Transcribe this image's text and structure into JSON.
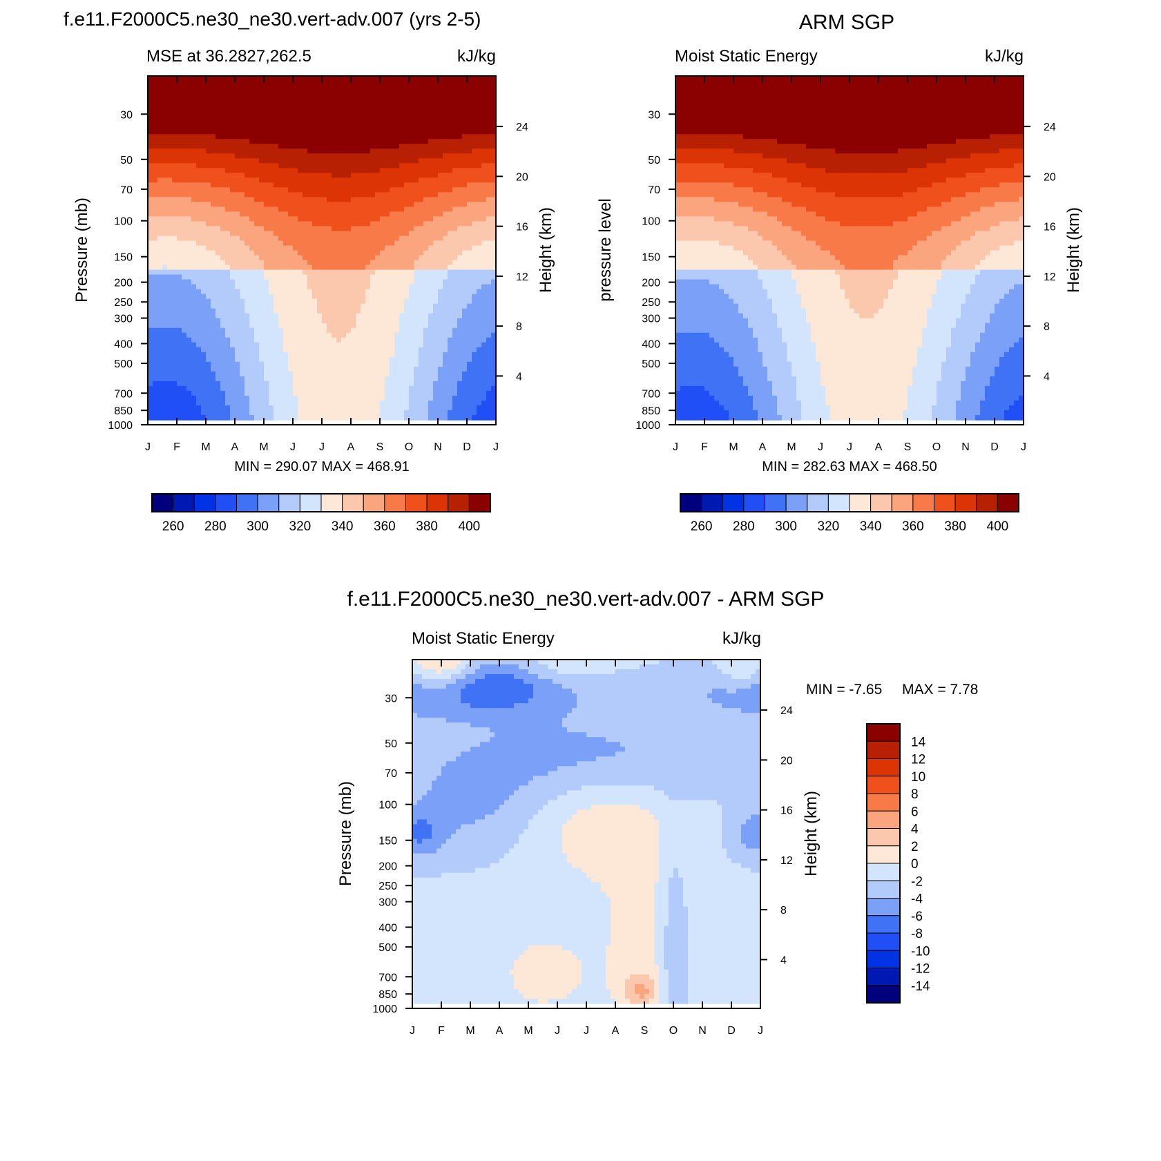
{
  "chart_data": [
    {
      "type": "heatmap",
      "id": "p1",
      "title": "f.e11.F2000C5.ne30_ne30.vert-adv.007 (yrs 2-5)",
      "subtitle_left": "MSE at 36.2827,262.5",
      "subtitle_right": "kJ/kg",
      "ylabel": "Pressure (mb)",
      "ylabel_right": "Height (km)",
      "months": [
        "J",
        "F",
        "M",
        "A",
        "M",
        "J",
        "J",
        "A",
        "S",
        "O",
        "N",
        "D",
        "J"
      ],
      "pressure_ticks": [
        30,
        50,
        70,
        100,
        150,
        200,
        250,
        300,
        400,
        500,
        700,
        850,
        1000
      ],
      "height_ticks": [
        24,
        20,
        16,
        12,
        8,
        4
      ],
      "stats": "MIN = 290.07 MAX = 468.91",
      "colorbar_ticks": [
        "260",
        "280",
        "300",
        "320",
        "340",
        "360",
        "380",
        "400"
      ],
      "levels": [
        250,
        260,
        270,
        280,
        290,
        300,
        310,
        320,
        330,
        340,
        350,
        360,
        370,
        380,
        390,
        400
      ],
      "summer_strength": 1.0
    },
    {
      "type": "heatmap",
      "id": "p2",
      "title": "ARM SGP",
      "subtitle_left": "Moist Static Energy",
      "subtitle_right": "kJ/kg",
      "ylabel": "pressure level",
      "ylabel_right": "Height (km)",
      "months": [
        "J",
        "F",
        "M",
        "A",
        "M",
        "J",
        "J",
        "A",
        "S",
        "O",
        "N",
        "D",
        "J"
      ],
      "pressure_ticks": [
        30,
        50,
        70,
        100,
        150,
        200,
        250,
        300,
        400,
        500,
        700,
        850,
        1000
      ],
      "height_ticks": [
        24,
        20,
        16,
        12,
        8,
        4
      ],
      "stats": "MIN = 282.63 MAX = 468.50",
      "colorbar_ticks": [
        "260",
        "280",
        "300",
        "320",
        "340",
        "360",
        "380",
        "400"
      ],
      "levels": [
        250,
        260,
        270,
        280,
        290,
        300,
        310,
        320,
        330,
        340,
        350,
        360,
        370,
        380,
        390,
        400
      ],
      "summer_strength": 0.95
    },
    {
      "type": "heatmap",
      "id": "p3",
      "title": "f.e11.F2000C5.ne30_ne30.vert-adv.007 - ARM SGP",
      "subtitle_left": "Moist Static Energy",
      "subtitle_right": "kJ/kg",
      "ylabel": "Pressure (mb)",
      "ylabel_right": "Height (km)",
      "months": [
        "J",
        "F",
        "M",
        "A",
        "M",
        "J",
        "J",
        "A",
        "S",
        "O",
        "N",
        "D",
        "J"
      ],
      "pressure_ticks": [
        30,
        50,
        70,
        100,
        150,
        200,
        250,
        300,
        400,
        500,
        700,
        850,
        1000
      ],
      "height_ticks": [
        24,
        20,
        16,
        12,
        8,
        4
      ],
      "stats_min": "MIN =  -7.65",
      "stats_max": "MAX =   7.78",
      "colorbar_ticks": [
        "14",
        "12",
        "10",
        "8",
        "6",
        "4",
        "2",
        "0",
        "-2",
        "-4",
        "-6",
        "-8",
        "-10",
        "-12",
        "-14"
      ],
      "levels": [
        -14,
        -12,
        -10,
        -8,
        -6,
        -4,
        -2,
        0,
        2,
        4,
        6,
        8,
        10,
        12,
        14
      ]
    }
  ],
  "palette": [
    "#00007f",
    "#0019b3",
    "#0033e6",
    "#1f4ff5",
    "#4072f5",
    "#7aa0f7",
    "#b2cbfa",
    "#d3e5fc",
    "#fde7d6",
    "#fcc8ad",
    "#fba57f",
    "#f77a48",
    "#f0501b",
    "#dc3405",
    "#b82004",
    "#8b0000"
  ]
}
